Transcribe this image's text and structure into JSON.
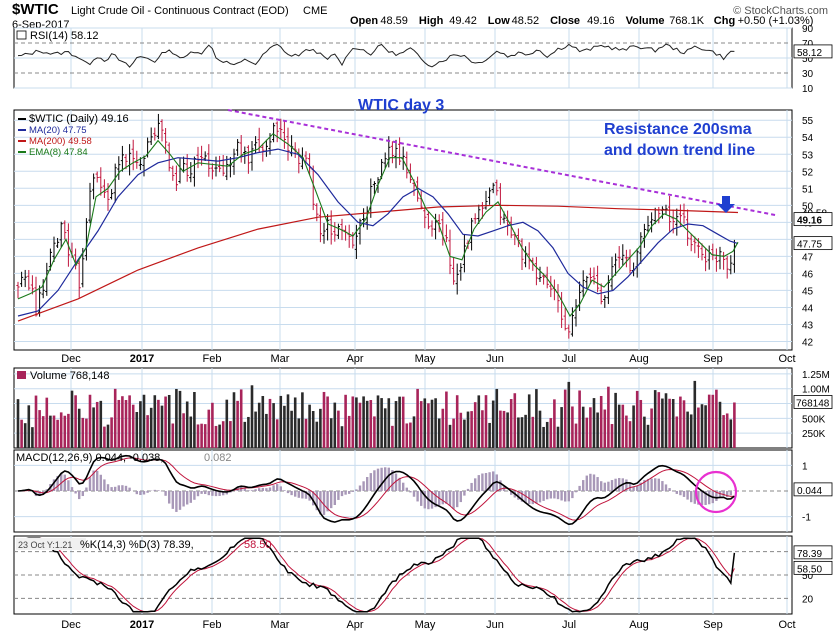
{
  "header": {
    "symbol": "$WTIC",
    "name": "Light Crude Oil - Continuous Contract (EOD)",
    "exchange": "CME",
    "credit": "© StockCharts.com",
    "date": "6-Sep-2017",
    "quote": [
      {
        "label": "Open",
        "value": "48.59"
      },
      {
        "label": "High",
        "value": "49.42"
      },
      {
        "label": "Low",
        "value": "48.52"
      },
      {
        "label": "Close",
        "value": "49.16"
      },
      {
        "label": "Volume",
        "value": "768.1K"
      },
      {
        "label": "Chg",
        "value": "+0.50 (+1.03%)"
      }
    ]
  },
  "colors": {
    "bg": "#ffffff",
    "grid": "#c8dcee",
    "frame": "#000000",
    "up": "#000000",
    "down": "#c0143c",
    "ma20": "#1f2a9c",
    "ma200": "#c01818",
    "ema8": "#1a7a1a",
    "trend": "#a830d8",
    "annotation": "#1f3fd0",
    "volume_up": "#2a2a2a",
    "volume_down": "#a8245a",
    "histogram": "#a898b8",
    "circle": "#e830d0"
  },
  "chart_data": {
    "type": "candlestick",
    "x_tick_labels": [
      "Dec",
      "2017",
      "Feb",
      "Mar",
      "Apr",
      "May",
      "Jun",
      "Jul",
      "Aug",
      "Sep",
      "Oct"
    ],
    "rsi": {
      "legend": "RSI(14) 58.12",
      "ticks": [
        "90",
        "70",
        "50",
        "30",
        "10"
      ],
      "last_label": "58.12",
      "ylim": [
        10,
        90
      ],
      "control_points": [
        [
          0,
          52
        ],
        [
          10,
          55
        ],
        [
          22,
          60
        ],
        [
          35,
          55
        ],
        [
          50,
          58
        ],
        [
          62,
          50
        ],
        [
          70,
          40
        ],
        [
          78,
          53
        ],
        [
          87,
          47
        ],
        [
          95,
          55
        ],
        [
          103,
          45
        ],
        [
          112,
          38
        ],
        [
          120,
          52
        ],
        [
          130,
          50
        ],
        [
          138,
          45
        ],
        [
          147,
          60
        ],
        [
          155,
          58
        ],
        [
          165,
          48
        ],
        [
          175,
          60
        ],
        [
          185,
          57
        ],
        [
          193,
          70
        ],
        [
          198,
          50
        ],
        [
          207,
          45
        ],
        [
          218,
          40
        ],
        [
          228,
          48
        ],
        [
          238,
          42
        ],
        [
          248,
          58
        ],
        [
          258,
          68
        ],
        [
          265,
          62
        ],
        [
          272,
          52
        ],
        [
          282,
          55
        ],
        [
          292,
          62
        ],
        [
          300,
          58
        ],
        [
          308,
          47
        ],
        [
          316,
          55
        ],
        [
          325,
          40
        ],
        [
          330,
          58
        ],
        [
          340,
          65
        ],
        [
          352,
          55
        ],
        [
          364,
          68
        ],
        [
          372,
          57
        ],
        [
          382,
          55
        ],
        [
          393,
          63
        ],
        [
          403,
          48
        ],
        [
          413,
          40
        ],
        [
          425,
          47
        ],
        [
          437,
          55
        ],
        [
          447,
          53
        ],
        [
          458,
          42
        ],
        [
          470,
          50
        ],
        [
          480,
          60
        ],
        [
          490,
          52
        ],
        [
          500,
          57
        ],
        [
          510,
          55
        ],
        [
          520,
          62
        ],
        [
          530,
          52
        ],
        [
          540,
          62
        ],
        [
          552,
          68
        ],
        [
          563,
          58
        ],
        [
          575,
          63
        ],
        [
          585,
          67
        ],
        [
          595,
          63
        ],
        [
          607,
          60
        ],
        [
          617,
          67
        ],
        [
          627,
          63
        ],
        [
          637,
          60
        ],
        [
          647,
          68
        ],
        [
          657,
          62
        ],
        [
          667,
          57
        ],
        [
          677,
          65
        ],
        [
          687,
          62
        ],
        [
          697,
          57
        ],
        [
          706,
          50
        ],
        [
          715,
          60
        ],
        [
          720,
          58
        ]
      ]
    },
    "price": {
      "legend": [
        {
          "text": "$WTIC (Daily) 49.16",
          "color": "#000000"
        },
        {
          "text": "MA(20) 47.75",
          "color": "#1f2a9c"
        },
        {
          "text": "MA(200) 49.58",
          "color": "#c01818"
        },
        {
          "text": "EMA(8) 47.84",
          "color": "#1a7a1a"
        }
      ],
      "ticks": [
        "55",
        "54",
        "53",
        "52",
        "51",
        "50",
        "49",
        "48",
        "47",
        "46",
        "45",
        "44",
        "43",
        "42"
      ],
      "ylim": [
        41.5,
        55.6
      ],
      "last_price_label": "49.16",
      "ma200_label": "49.58",
      "ma20_label": "47.75",
      "close_control_points": [
        [
          0,
          45.2
        ],
        [
          12,
          45.6
        ],
        [
          18,
          43.8
        ],
        [
          26,
          45.2
        ],
        [
          34,
          47.2
        ],
        [
          45,
          49.0
        ],
        [
          52,
          47.0
        ],
        [
          62,
          45.3
        ],
        [
          66,
          48.0
        ],
        [
          74,
          52.2
        ],
        [
          82,
          51.0
        ],
        [
          92,
          50.5
        ],
        [
          100,
          52.5
        ],
        [
          110,
          53.0
        ],
        [
          118,
          52.2
        ],
        [
          126,
          53.2
        ],
        [
          134,
          54.5
        ],
        [
          146,
          54.5
        ],
        [
          150,
          52.2
        ],
        [
          158,
          51.2
        ],
        [
          164,
          52.5
        ],
        [
          172,
          52.0
        ],
        [
          182,
          53.2
        ],
        [
          190,
          52.2
        ],
        [
          200,
          52.0
        ],
        [
          210,
          52.2
        ],
        [
          220,
          53.5
        ],
        [
          230,
          52.5
        ],
        [
          240,
          53.5
        ],
        [
          250,
          53.5
        ],
        [
          258,
          55.0
        ],
        [
          266,
          53.5
        ],
        [
          274,
          53.2
        ],
        [
          282,
          52.8
        ],
        [
          290,
          52.5
        ],
        [
          296,
          50.2
        ],
        [
          304,
          48.0
        ],
        [
          310,
          48.8
        ],
        [
          316,
          48.2
        ],
        [
          322,
          49.0
        ],
        [
          330,
          47.8
        ],
        [
          338,
          48.2
        ],
        [
          346,
          49.5
        ],
        [
          354,
          51.0
        ],
        [
          362,
          52.0
        ],
        [
          370,
          53.2
        ],
        [
          380,
          53.0
        ],
        [
          388,
          52.2
        ],
        [
          396,
          51.2
        ],
        [
          404,
          49.5
        ],
        [
          412,
          49.0
        ],
        [
          420,
          48.8
        ],
        [
          428,
          48.0
        ],
        [
          436,
          45.5
        ],
        [
          444,
          47.0
        ],
        [
          452,
          48.5
        ],
        [
          460,
          49.5
        ],
        [
          468,
          50.0
        ],
        [
          476,
          51.2
        ],
        [
          484,
          49.2
        ],
        [
          492,
          48.5
        ],
        [
          498,
          48.0
        ],
        [
          506,
          47.0
        ],
        [
          514,
          46.2
        ],
        [
          522,
          45.8
        ],
        [
          530,
          45.5
        ],
        [
          538,
          44.5
        ],
        [
          546,
          43.0
        ],
        [
          552,
          42.6
        ],
        [
          558,
          44.0
        ],
        [
          564,
          45.2
        ],
        [
          570,
          46.0
        ],
        [
          578,
          45.5
        ],
        [
          584,
          44.5
        ],
        [
          592,
          46.0
        ],
        [
          600,
          46.8
        ],
        [
          608,
          47.0
        ],
        [
          616,
          46.0
        ],
        [
          624,
          48.5
        ],
        [
          632,
          49.0
        ],
        [
          640,
          50.0
        ],
        [
          648,
          49.5
        ],
        [
          656,
          49.0
        ],
        [
          664,
          49.2
        ],
        [
          672,
          48.0
        ],
        [
          680,
          47.5
        ],
        [
          688,
          47.0
        ],
        [
          696,
          46.8
        ],
        [
          704,
          47.5
        ],
        [
          710,
          46.2
        ],
        [
          716,
          47.8
        ],
        [
          720,
          49.16
        ]
      ],
      "ma20_control_points": [
        [
          0,
          43.5
        ],
        [
          20,
          43.8
        ],
        [
          40,
          45.0
        ],
        [
          60,
          46.8
        ],
        [
          80,
          48.5
        ],
        [
          100,
          50.5
        ],
        [
          120,
          51.8
        ],
        [
          140,
          52.5
        ],
        [
          160,
          52.8
        ],
        [
          180,
          52.7
        ],
        [
          200,
          52.6
        ],
        [
          220,
          52.8
        ],
        [
          240,
          53.1
        ],
        [
          260,
          53.3
        ],
        [
          280,
          53.0
        ],
        [
          300,
          51.8
        ],
        [
          320,
          50.2
        ],
        [
          340,
          49.0
        ],
        [
          355,
          48.8
        ],
        [
          370,
          49.5
        ],
        [
          385,
          50.5
        ],
        [
          400,
          51.0
        ],
        [
          415,
          50.5
        ],
        [
          430,
          49.5
        ],
        [
          445,
          48.3
        ],
        [
          460,
          48.2
        ],
        [
          475,
          48.5
        ],
        [
          490,
          48.8
        ],
        [
          505,
          49.0
        ],
        [
          520,
          48.5
        ],
        [
          535,
          47.5
        ],
        [
          550,
          46.0
        ],
        [
          565,
          45.2
        ],
        [
          580,
          44.8
        ],
        [
          595,
          45.0
        ],
        [
          610,
          45.8
        ],
        [
          625,
          46.8
        ],
        [
          640,
          47.8
        ],
        [
          655,
          48.6
        ],
        [
          670,
          48.9
        ],
        [
          685,
          48.8
        ],
        [
          700,
          48.3
        ],
        [
          712,
          47.9
        ],
        [
          720,
          47.75
        ]
      ],
      "ema8_control_points": [
        [
          0,
          44.5
        ],
        [
          12,
          44.8
        ],
        [
          24,
          45.2
        ],
        [
          36,
          46.8
        ],
        [
          48,
          48.0
        ],
        [
          58,
          46.5
        ],
        [
          68,
          47.5
        ],
        [
          78,
          50.5
        ],
        [
          90,
          51.0
        ],
        [
          102,
          52.0
        ],
        [
          115,
          52.5
        ],
        [
          128,
          52.9
        ],
        [
          140,
          53.8
        ],
        [
          152,
          53.0
        ],
        [
          165,
          52.0
        ],
        [
          180,
          52.5
        ],
        [
          195,
          52.4
        ],
        [
          210,
          52.3
        ],
        [
          225,
          53.0
        ],
        [
          240,
          53.3
        ],
        [
          255,
          54.2
        ],
        [
          270,
          53.6
        ],
        [
          285,
          52.8
        ],
        [
          298,
          50.8
        ],
        [
          310,
          48.9
        ],
        [
          322,
          48.6
        ],
        [
          335,
          48.2
        ],
        [
          348,
          49.2
        ],
        [
          360,
          51.2
        ],
        [
          372,
          52.8
        ],
        [
          384,
          52.8
        ],
        [
          396,
          51.4
        ],
        [
          408,
          49.8
        ],
        [
          420,
          49.0
        ],
        [
          432,
          47.0
        ],
        [
          444,
          46.8
        ],
        [
          456,
          48.6
        ],
        [
          468,
          49.6
        ],
        [
          480,
          50.2
        ],
        [
          492,
          48.9
        ],
        [
          504,
          47.5
        ],
        [
          516,
          46.5
        ],
        [
          528,
          45.8
        ],
        [
          540,
          44.8
        ],
        [
          552,
          43.5
        ],
        [
          562,
          44.2
        ],
        [
          574,
          45.6
        ],
        [
          586,
          45.2
        ],
        [
          598,
          46.0
        ],
        [
          610,
          46.8
        ],
        [
          622,
          47.6
        ],
        [
          634,
          48.8
        ],
        [
          646,
          49.5
        ],
        [
          658,
          49.2
        ],
        [
          670,
          48.5
        ],
        [
          682,
          47.8
        ],
        [
          694,
          47.1
        ],
        [
          706,
          47.0
        ],
        [
          715,
          47.3
        ],
        [
          720,
          47.84
        ]
      ],
      "ma200_control_points": [
        [
          0,
          43.2
        ],
        [
          60,
          44.5
        ],
        [
          120,
          46.2
        ],
        [
          180,
          47.5
        ],
        [
          240,
          48.6
        ],
        [
          300,
          49.3
        ],
        [
          360,
          49.6
        ],
        [
          420,
          49.9
        ],
        [
          480,
          50.0
        ],
        [
          540,
          49.95
        ],
        [
          600,
          49.8
        ],
        [
          660,
          49.7
        ],
        [
          720,
          49.58
        ]
      ],
      "trend_line": [
        [
          210,
          55.6
        ],
        [
          760,
          49.4
        ]
      ],
      "annotations": [
        "WTIC day 3",
        "Resistance 200sma",
        "and down trend line"
      ]
    },
    "volume": {
      "legend": "Volume 768,148",
      "ticks": [
        "1.25M",
        "1.00M",
        "750K",
        "500K",
        "250K"
      ],
      "last_label": "768148",
      "ylim": [
        0,
        1350000
      ],
      "last_value": 768148
    },
    "macd": {
      "legend_main": "MACD(12,26,9) 0.044, -0.038,",
      "legend_hist": "0.082",
      "ticks": [
        "1",
        "0",
        "-1"
      ],
      "last_label": "0.044",
      "ylim": [
        -1.6,
        1.6
      ]
    },
    "stochastic": {
      "legend_prefix": "23 Oct Y:1.21",
      "legend": "%K(14,3) %D(3) 78.39,",
      "legend_d": "58.50",
      "ticks": [
        "80",
        "50",
        "20"
      ],
      "k_label": "78.39",
      "d_label": "58.50",
      "ylim": [
        0,
        100
      ]
    }
  }
}
